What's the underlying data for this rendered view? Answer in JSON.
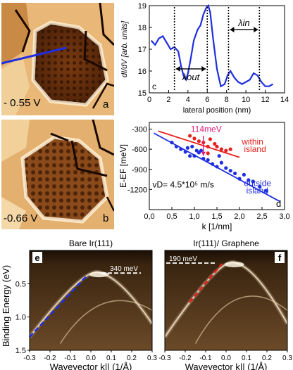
{
  "panels": {
    "a": {
      "letter": "a",
      "bias": "- 0.55 V"
    },
    "b": {
      "letter": "b",
      "bias": "-0.66 V"
    },
    "e": {
      "letter": "e",
      "title": "Bare Ir(111)",
      "annotation": "340 meV"
    },
    "f": {
      "letter": "f",
      "title": "Ir(111)/ Graphene",
      "annotation": "190 meV"
    }
  },
  "colors": {
    "blue": "#1f2ee0",
    "red": "#e8201c",
    "magenta": "#e0187a",
    "stm_dark": "#3a1a05",
    "stm_light": "#f4d7a6",
    "arpes_dark": "#2a1a08"
  },
  "chart_data": [
    {
      "id": "c",
      "type": "line",
      "letter": "c",
      "xlabel": "lateral position (nm)",
      "ylabel": "dI/dV [arb. units]",
      "xlim": [
        0,
        14
      ],
      "ylim": [
        15,
        19
      ],
      "xticks": [
        "0",
        "2",
        "4",
        "6",
        "8",
        "10",
        "12",
        "14"
      ],
      "yticks": [
        "15",
        "16",
        "17",
        "18",
        "19"
      ],
      "series": [
        {
          "x": [
            0.2,
            0.6,
            1.0,
            1.4,
            1.8,
            2.2,
            2.6,
            3.0,
            3.3,
            3.6,
            3.8,
            4.0,
            4.3,
            4.6,
            5.0,
            5.3,
            5.6,
            5.9,
            6.1,
            6.3,
            6.6,
            7.0,
            7.4,
            7.8,
            8.1,
            8.4,
            8.8,
            9.2,
            9.6,
            10.0,
            10.4,
            10.8,
            11.2,
            11.6,
            12.0,
            12.4,
            12.8
          ],
          "y": [
            17.4,
            17.2,
            17.5,
            17.6,
            17.3,
            17.0,
            17.1,
            16.9,
            16.2,
            15.7,
            15.6,
            15.9,
            16.6,
            17.4,
            17.9,
            18.1,
            18.6,
            18.9,
            19.0,
            18.7,
            17.5,
            16.1,
            15.3,
            15.4,
            15.8,
            16.0,
            15.7,
            15.5,
            15.4,
            15.5,
            15.6,
            15.9,
            15.8,
            15.5,
            15.3,
            15.3,
            15.4
          ]
        }
      ],
      "markers": [
        {
          "x": 2.6,
          "label": ""
        },
        {
          "x": 6.0,
          "label": ""
        },
        {
          "x": 8.2,
          "label": ""
        },
        {
          "x": 11.4,
          "label": ""
        }
      ],
      "arrows": [
        {
          "label": "λout",
          "x1": 2.6,
          "x2": 6.0,
          "y": 16.1
        },
        {
          "label": "λin",
          "x1": 8.2,
          "x2": 11.4,
          "y": 17.9
        }
      ]
    },
    {
      "id": "d",
      "type": "scatter",
      "letter": "d",
      "xlabel": "k [1/nm]",
      "ylabel": "E-EF [meV]",
      "xlim": [
        0.0,
        3.0
      ],
      "ylim": [
        -1500,
        -200
      ],
      "xticks": [
        "0,0",
        "0,5",
        "1,0",
        "1,5",
        "2,0",
        "2,5",
        "3,0"
      ],
      "yticks": [
        "-300",
        "-600",
        "-900",
        "-1200"
      ],
      "annotation": "114meV",
      "velocity": "vD= 4.5*10⁵ m/s",
      "series": [
        {
          "name": "within island",
          "color": "red",
          "x": [
            0.9,
            1.0,
            1.1,
            1.2,
            1.3,
            1.35,
            1.5,
            1.6,
            1.7,
            1.8,
            1.3,
            1.45
          ],
          "y": [
            -400,
            -440,
            -480,
            -500,
            -560,
            -450,
            -560,
            -600,
            -620,
            -600,
            -660,
            -520
          ],
          "fit": {
            "x": [
              0.2,
              2.0
            ],
            "y": [
              -330,
              -720
            ]
          }
        },
        {
          "name": "outside island",
          "color": "blue",
          "x": [
            0.5,
            0.6,
            0.7,
            0.8,
            0.9,
            0.95,
            1.0,
            1.05,
            1.1,
            1.2,
            1.3,
            1.4,
            1.5,
            1.55,
            1.6,
            1.7,
            1.8,
            1.9,
            2.0,
            2.1,
            2.2,
            2.3,
            2.45,
            2.6,
            0.85,
            1.15
          ],
          "y": [
            -500,
            -560,
            -600,
            -640,
            -700,
            -560,
            -700,
            -620,
            -650,
            -740,
            -760,
            -820,
            -860,
            -700,
            -800,
            -880,
            -920,
            -960,
            -1040,
            -980,
            -1060,
            -1080,
            -1160,
            -1220,
            -580,
            -620
          ],
          "fit": {
            "x": [
              0.1,
              2.9
            ],
            "y": [
              -360,
              -1380
            ]
          }
        }
      ],
      "legend_labels": [
        "within\nisland",
        "outside\nisland"
      ]
    },
    {
      "id": "e",
      "type": "heatmap",
      "xlabel": "Wavevector k||  (1/Å)",
      "ylabel": "Binding Energy (eV)",
      "xlim": [
        -0.3,
        0.3
      ],
      "ylim": [
        1.5,
        0.0
      ],
      "xticks": [
        "-0.3",
        "-0.2",
        "-0.1",
        "0.0",
        "0.1",
        "0.2",
        "0.3"
      ],
      "yticks": [
        "0.5",
        "1.0",
        "1.5"
      ],
      "dashed_line": {
        "x": [
          -0.3,
          -0.02
        ],
        "y": [
          1.3,
          0.38
        ]
      },
      "annotation_energy": 0.34
    },
    {
      "id": "f",
      "type": "heatmap",
      "xlabel": "Wavevector k||  (1/Å)",
      "xlim": [
        -0.3,
        0.3
      ],
      "ylim": [
        1.5,
        0.0
      ],
      "xticks": [
        "-0.3",
        "-0.2",
        "-0.1",
        "0.0",
        "0.1",
        "0.2",
        "0.3"
      ],
      "dashed_line": {
        "x": [
          -0.18,
          -0.02
        ],
        "y": [
          0.78,
          0.2
        ]
      },
      "annotation_energy": 0.19
    }
  ]
}
